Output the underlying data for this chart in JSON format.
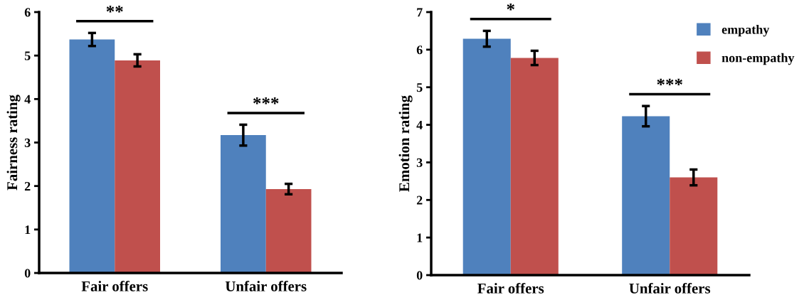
{
  "chart_data": [
    {
      "type": "bar",
      "ylabel": "Fairness rating",
      "categories": [
        "Fair offers",
        "Unfair offers"
      ],
      "ylim": [
        0,
        6
      ],
      "yticks": [
        0,
        1,
        2,
        3,
        4,
        5,
        6
      ],
      "grid": false,
      "legend": false,
      "series": [
        {
          "color": "#4f81bd",
          "values": [
            5.37,
            3.17
          ],
          "errors": [
            0.15,
            0.24
          ]
        },
        {
          "color": "#c0504d",
          "values": [
            4.89,
            1.93
          ],
          "errors": [
            0.14,
            0.12
          ]
        }
      ],
      "annotations": [
        "**",
        "***"
      ]
    },
    {
      "type": "bar",
      "ylabel": "Emotion rating",
      "categories": [
        "Fair offers",
        "Unfair offers"
      ],
      "ylim": [
        0,
        7
      ],
      "yticks": [
        0,
        1,
        2,
        3,
        4,
        5,
        6,
        7
      ],
      "grid": false,
      "legend": "top right",
      "series": [
        {
          "name": "empathy",
          "color": "#4f81bd",
          "values": [
            6.29,
            4.23
          ],
          "errors": [
            0.21,
            0.27
          ]
        },
        {
          "name": "non-empathy",
          "color": "#c0504d",
          "values": [
            5.78,
            2.6
          ],
          "errors": [
            0.19,
            0.21
          ]
        }
      ],
      "annotations": [
        "*",
        "***"
      ]
    }
  ]
}
